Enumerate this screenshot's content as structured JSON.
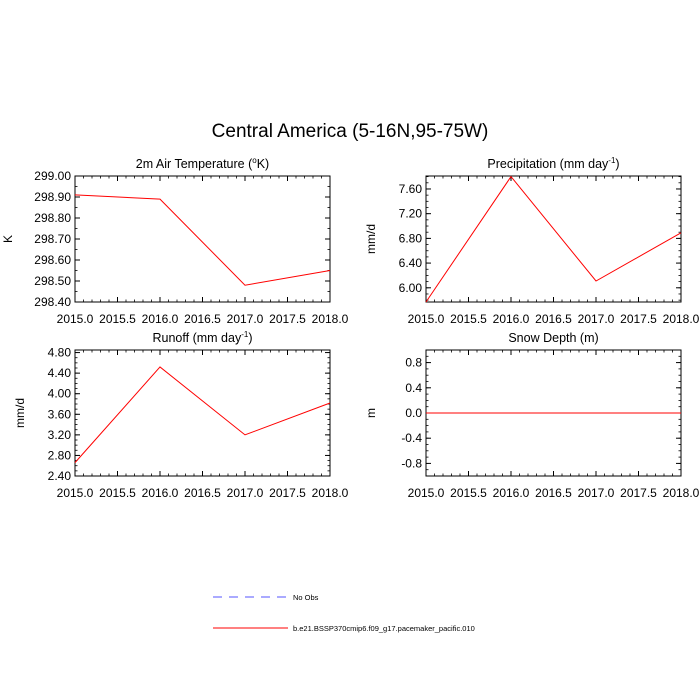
{
  "title": "Central America (5-16N,95-75W)",
  "chart_data": [
    {
      "type": "line",
      "title": "2m Air Temperature (",
      "title_sup": "o",
      "title_suffix": "K)",
      "ylabel": "K",
      "x": [
        2015,
        2016,
        2017,
        2018
      ],
      "xlim": [
        2015,
        2018
      ],
      "xticks": [
        2015.0,
        2015.5,
        2016.0,
        2016.5,
        2017.0,
        2017.5,
        2018.0
      ],
      "xtick_labels": [
        "2015.0",
        "2015.5",
        "2016.0",
        "2016.5",
        "2017.0",
        "2017.5",
        "2018.0"
      ],
      "ylim": [
        298.4,
        299.0
      ],
      "yticks": [
        298.4,
        298.5,
        298.6,
        298.7,
        298.8,
        298.9,
        299.0
      ],
      "ytick_labels": [
        "298.40",
        "298.50",
        "298.60",
        "298.70",
        "298.80",
        "298.90",
        "299.00"
      ],
      "yminor": 0.05,
      "series": [
        {
          "name": "b.e21.BSSP370cmip6.f09_g17.pacemaker_pacific.010",
          "values": [
            298.91,
            298.89,
            298.48,
            298.55
          ],
          "color": "#ff0000"
        }
      ]
    },
    {
      "type": "line",
      "title": "Precipitation (mm day",
      "title_sup": "-1",
      "title_suffix": ")",
      "ylabel": "mm/d",
      "x": [
        2015,
        2016,
        2017,
        2018
      ],
      "xlim": [
        2015,
        2018
      ],
      "xticks": [
        2015.0,
        2015.5,
        2016.0,
        2016.5,
        2017.0,
        2017.5,
        2018.0
      ],
      "xtick_labels": [
        "2015.0",
        "2015.5",
        "2016.0",
        "2016.5",
        "2017.0",
        "2017.5",
        "2018.0"
      ],
      "ylim": [
        5.77,
        7.81
      ],
      "yticks": [
        6.0,
        6.4,
        6.8,
        7.2,
        7.6
      ],
      "ytick_labels": [
        "6.00",
        "6.40",
        "6.80",
        "7.20",
        "7.60"
      ],
      "yminor": 0.1,
      "series": [
        {
          "name": "b.e21.BSSP370cmip6.f09_g17.pacemaker_pacific.010",
          "values": [
            5.77,
            7.8,
            6.11,
            6.89
          ],
          "color": "#ff0000"
        }
      ]
    },
    {
      "type": "line",
      "title": "Runoff (mm day",
      "title_sup": "-1",
      "title_suffix": ")",
      "ylabel": "mm/d",
      "x": [
        2015,
        2016,
        2017,
        2018
      ],
      "xlim": [
        2015,
        2018
      ],
      "xticks": [
        2015.0,
        2015.5,
        2016.0,
        2016.5,
        2017.0,
        2017.5,
        2018.0
      ],
      "xtick_labels": [
        "2015.0",
        "2015.5",
        "2016.0",
        "2016.5",
        "2017.0",
        "2017.5",
        "2018.0"
      ],
      "ylim": [
        2.4,
        4.85
      ],
      "yticks": [
        2.4,
        2.8,
        3.2,
        3.6,
        4.0,
        4.4,
        4.8
      ],
      "ytick_labels": [
        "2.40",
        "2.80",
        "3.20",
        "3.60",
        "4.00",
        "4.40",
        "4.80"
      ],
      "yminor": 0.1,
      "series": [
        {
          "name": "b.e21.BSSP370cmip6.f09_g17.pacemaker_pacific.010",
          "values": [
            2.66,
            4.52,
            3.2,
            3.82
          ],
          "color": "#ff0000"
        }
      ]
    },
    {
      "type": "line",
      "title": "Snow Depth (m)",
      "title_sup": "",
      "title_suffix": "",
      "ylabel": "m",
      "x": [
        2015,
        2016,
        2017,
        2018
      ],
      "xlim": [
        2015,
        2018
      ],
      "xticks": [
        2015.0,
        2015.5,
        2016.0,
        2016.5,
        2017.0,
        2017.5,
        2018.0
      ],
      "xtick_labels": [
        "2015.0",
        "2015.5",
        "2016.0",
        "2016.5",
        "2017.0",
        "2017.5",
        "2018.0"
      ],
      "ylim": [
        -1.0,
        1.0
      ],
      "yticks": [
        -0.8,
        -0.4,
        0.0,
        0.4,
        0.8
      ],
      "ytick_labels": [
        "-0.8",
        "-0.4",
        "0.0",
        "0.4",
        "0.8"
      ],
      "yminor": 0.1,
      "series": [
        {
          "name": "b.e21.BSSP370cmip6.f09_g17.pacemaker_pacific.010",
          "values": [
            0.0,
            0.0,
            0.0,
            0.0
          ],
          "color": "#ff0000"
        }
      ]
    }
  ],
  "legend": [
    {
      "label": "No Obs",
      "color": "#5555ff",
      "style": "dashed"
    },
    {
      "label": "b.e21.BSSP370cmip6.f09_g17.pacemaker_pacific.010",
      "color": "#ff0000",
      "style": "solid"
    }
  ]
}
